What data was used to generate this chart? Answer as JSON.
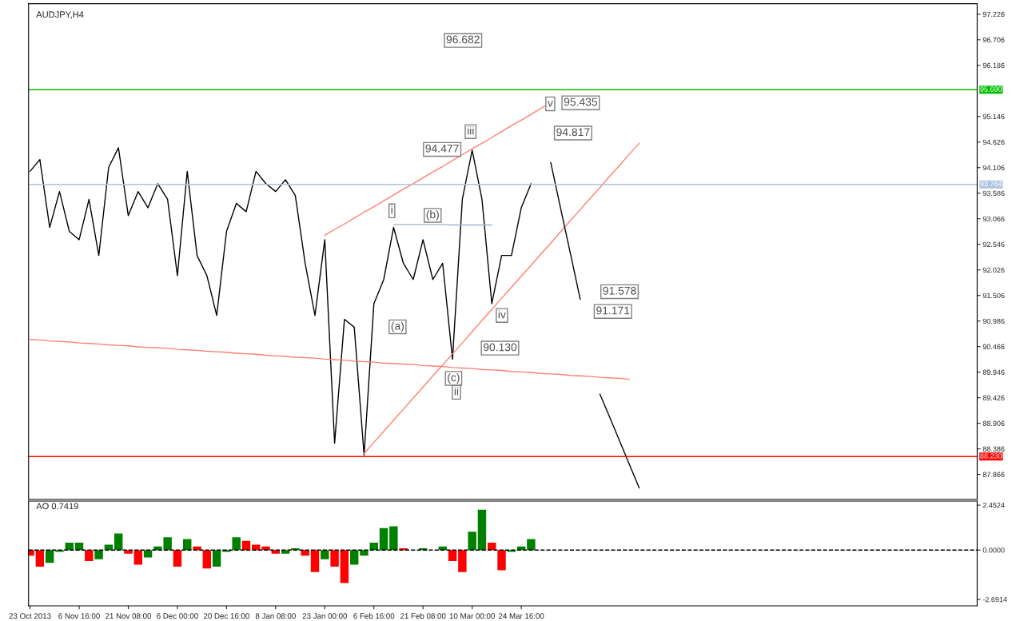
{
  "chart_data": [
    {
      "type": "line",
      "title": "AUDJPY,H4",
      "categories": [
        null,
        null,
        null,
        null,
        null,
        null,
        null,
        null,
        null,
        null,
        null,
        null,
        null,
        null,
        null,
        null,
        null,
        null,
        null,
        null,
        null,
        null,
        null,
        null,
        null,
        null,
        null,
        null,
        null,
        null,
        null,
        null,
        null,
        null,
        null,
        null,
        null,
        null,
        null,
        null,
        null,
        null,
        null,
        null,
        null,
        null,
        null,
        null,
        null,
        null,
        null,
        null,
        null,
        null,
        null,
        null,
        null,
        null,
        null,
        null,
        null,
        null,
        null,
        null,
        null,
        null,
        null,
        null,
        null,
        null,
        null,
        null,
        null,
        null,
        null,
        null,
        null,
        null,
        null,
        null,
        null,
        null,
        null,
        null,
        null,
        null,
        null,
        null,
        null,
        null,
        null,
        null,
        null,
        null,
        null,
        null,
        null
      ],
      "ylim": [
        87.36,
        97.44
      ],
      "tick_labels": "y",
      "yticks": [
        87.866,
        88.386,
        88.906,
        89.426,
        89.946,
        90.466,
        90.986,
        91.506,
        92.026,
        92.546,
        93.066,
        93.586,
        94.106,
        94.626,
        95.146,
        96.186,
        96.706,
        97.226
      ],
      "series": [
        {
          "color": "#000000",
          "values": [
            94.03,
            94.27,
            92.89,
            93.62,
            92.81,
            92.64,
            93.46,
            92.32,
            94.11,
            94.51,
            93.13,
            93.62,
            93.29,
            93.78,
            93.46,
            91.91,
            94.03,
            92.32,
            91.91,
            91.1,
            92.81,
            93.38,
            93.21,
            94.03,
            93.78,
            93.62,
            93.86,
            93.54,
            92.16,
            91.1,
            92.64,
            88.5,
            91.02,
            90.86,
            88.26,
            91.34,
            91.83,
            92.89,
            92.16,
            91.83,
            92.64,
            91.83,
            92.16,
            90.21,
            93.46,
            94.46,
            93.46,
            91.34,
            92.32,
            92.32,
            93.29,
            93.78,
            null,
            null,
            null,
            null,
            null,
            null,
            null,
            null,
            null,
            null,
            null,
            null,
            null,
            null,
            null,
            null,
            null,
            null,
            null,
            null,
            null,
            null,
            null,
            null,
            null,
            null,
            null,
            null,
            null,
            null,
            null,
            null,
            null,
            null,
            null,
            null,
            null,
            null,
            null,
            null,
            null,
            null,
            null,
            null,
            null
          ]
        },
        {
          "color": "#ff8070",
          "values": [
            null,
            null,
            null,
            null,
            null,
            null,
            null,
            null,
            null,
            null,
            null,
            null,
            null,
            null,
            null,
            null,
            null,
            null,
            null,
            null,
            null,
            null,
            null,
            null,
            null,
            null,
            null,
            null,
            null,
            null,
            92.73,
            92.85,
            92.96,
            93.08,
            93.2,
            93.31,
            93.43,
            93.55,
            93.67,
            93.78,
            93.9,
            94.02,
            94.13,
            94.25,
            94.37,
            94.49,
            94.6,
            94.72,
            94.84,
            94.96,
            95.07,
            95.19,
            95.31,
            95.43,
            null,
            null,
            null,
            null,
            null,
            null,
            null,
            null,
            null,
            null,
            null,
            null,
            null,
            null,
            null,
            null,
            null,
            null,
            null,
            null,
            null,
            null,
            null,
            null,
            null,
            null,
            null,
            null,
            null,
            null,
            null,
            null,
            null,
            null,
            null,
            null,
            null,
            null,
            null,
            null,
            null,
            null,
            null
          ]
        },
        {
          "color": "#ff8070",
          "values": [
            null,
            null,
            null,
            null,
            null,
            null,
            null,
            null,
            null,
            null,
            null,
            null,
            null,
            null,
            null,
            null,
            null,
            null,
            null,
            null,
            null,
            null,
            null,
            null,
            null,
            null,
            null,
            null,
            null,
            null,
            null,
            null,
            null,
            null,
            88.29,
            88.52,
            88.74,
            88.97,
            89.19,
            89.42,
            89.64,
            89.87,
            90.09,
            90.32,
            90.54,
            90.77,
            91.0,
            91.22,
            91.45,
            91.67,
            91.9,
            92.12,
            92.35,
            92.57,
            92.8,
            93.03,
            93.25,
            93.48,
            93.7,
            93.93,
            94.15,
            94.38,
            94.6,
            null,
            null,
            null,
            null,
            null,
            null,
            null,
            null,
            null,
            null,
            null,
            null,
            null,
            null,
            null,
            null,
            null,
            null,
            null,
            null,
            null,
            null,
            null,
            null,
            null,
            null,
            null,
            null,
            null,
            null,
            null,
            null,
            null,
            null
          ]
        },
        {
          "color": "#ff8070",
          "values": [
            90.61,
            90.6,
            90.58,
            90.57,
            90.56,
            90.54,
            90.53,
            90.52,
            90.5,
            90.49,
            90.48,
            90.46,
            90.45,
            90.44,
            90.43,
            90.41,
            90.4,
            90.39,
            90.37,
            90.36,
            90.35,
            90.33,
            90.32,
            90.31,
            90.29,
            90.28,
            90.27,
            90.25,
            90.24,
            90.23,
            90.21,
            90.2,
            90.19,
            90.17,
            90.16,
            90.15,
            90.13,
            90.12,
            90.11,
            90.1,
            90.08,
            90.07,
            90.06,
            90.04,
            90.03,
            90.02,
            90.0,
            89.99,
            89.98,
            89.96,
            89.95,
            89.94,
            89.92,
            89.91,
            89.9,
            89.88,
            89.87,
            89.86,
            89.84,
            89.83,
            89.82,
            89.8,
            null,
            null,
            null,
            null,
            null,
            null,
            null,
            null,
            null,
            null,
            null,
            null,
            null,
            null,
            null,
            null,
            null,
            null,
            null,
            null,
            null,
            null,
            null,
            null,
            null,
            null,
            null,
            null,
            null,
            null,
            null,
            null,
            null,
            null,
            null
          ]
        },
        {
          "color": "#a0b4d0",
          "values": [
            null,
            null,
            null,
            null,
            null,
            null,
            null,
            null,
            null,
            null,
            null,
            null,
            null,
            null,
            null,
            null,
            null,
            null,
            null,
            null,
            null,
            null,
            null,
            null,
            null,
            null,
            null,
            null,
            null,
            null,
            null,
            null,
            null,
            null,
            null,
            null,
            null,
            92.95,
            92.95,
            92.95,
            92.95,
            92.95,
            92.95,
            92.94,
            92.94,
            92.94,
            92.94,
            92.94,
            null,
            null,
            null,
            null,
            null,
            null,
            null,
            null,
            null,
            null,
            null,
            null,
            null,
            null,
            null,
            null,
            null,
            null,
            null,
            null,
            null,
            null,
            null,
            null,
            null,
            null,
            null,
            null,
            null,
            null,
            null,
            null,
            null,
            null,
            null,
            null,
            null,
            null,
            null,
            null,
            null,
            null,
            null,
            null,
            null,
            null,
            null,
            null,
            null
          ]
        },
        {
          "color": "#000000",
          "values": [
            null,
            null,
            null,
            null,
            null,
            null,
            null,
            null,
            null,
            null,
            null,
            null,
            null,
            null,
            null,
            null,
            null,
            null,
            null,
            null,
            null,
            null,
            null,
            null,
            null,
            null,
            null,
            null,
            null,
            null,
            null,
            null,
            null,
            null,
            null,
            null,
            null,
            null,
            null,
            null,
            null,
            null,
            null,
            null,
            null,
            null,
            null,
            null,
            null,
            null,
            null,
            null,
            null,
            94.21,
            93.28,
            92.36,
            91.43,
            null,
            null,
            null,
            null,
            null,
            null,
            null,
            null,
            null,
            null,
            null,
            null,
            null,
            null,
            null,
            null,
            null,
            null,
            null,
            null,
            null,
            null,
            null,
            null,
            null,
            null,
            null,
            null,
            null,
            null,
            null,
            null,
            null,
            null,
            null,
            null,
            null,
            null,
            null,
            null
          ]
        },
        {
          "color": "#000000",
          "values": [
            null,
            null,
            null,
            null,
            null,
            null,
            null,
            null,
            null,
            null,
            null,
            null,
            null,
            null,
            null,
            null,
            null,
            null,
            null,
            null,
            null,
            null,
            null,
            null,
            null,
            null,
            null,
            null,
            null,
            null,
            null,
            null,
            null,
            null,
            null,
            null,
            null,
            null,
            null,
            null,
            null,
            null,
            null,
            null,
            null,
            null,
            null,
            null,
            null,
            null,
            null,
            null,
            null,
            null,
            null,
            null,
            null,
            null,
            89.5,
            89.03,
            88.55,
            88.07,
            87.59,
            null,
            null,
            null,
            null,
            null,
            null,
            null,
            null,
            null,
            null,
            null,
            null,
            null,
            null,
            null,
            null,
            null,
            null,
            null,
            null,
            null,
            null,
            null,
            null,
            null,
            null,
            null,
            null,
            null,
            null,
            null,
            null,
            null,
            null
          ]
        }
      ],
      "ref_lines": [
        {
          "axis": "y",
          "value": 95.69,
          "label": "95.690",
          "color": "#00c000"
        },
        {
          "axis": "y",
          "value": 93.764,
          "label": "93.764",
          "color": "#b0c4de"
        },
        {
          "axis": "y",
          "value": 88.23,
          "label": "88.230",
          "color": "#ff0000"
        }
      ],
      "annotations": [
        "96.682",
        "94.477",
        "90.130",
        "95.435",
        "94.817",
        "91.578",
        "91.171",
        "i",
        "(b)",
        "(a)",
        "iii",
        "v",
        "iv",
        "(c)",
        "ii"
      ]
    },
    {
      "type": "bar",
      "title": "AO 0.7419",
      "categories": [
        "23 Oct 2013",
        null,
        null,
        null,
        null,
        "6 Nov 16:00",
        null,
        null,
        null,
        null,
        "21 Nov 08:00",
        null,
        null,
        null,
        null,
        "6 Dec 00:00",
        null,
        null,
        null,
        null,
        "20 Dec 16:00",
        null,
        null,
        null,
        null,
        "8 Jan 08:00",
        null,
        null,
        null,
        null,
        "23 Jan 00:00",
        null,
        null,
        null,
        null,
        "6 Feb 16:00",
        null,
        null,
        null,
        null,
        "21 Feb 08:00",
        null,
        null,
        null,
        null,
        "10 Mar 00:00",
        null,
        null,
        null,
        null,
        "24 Mar 16:00",
        null,
        null,
        null,
        null,
        null,
        null,
        null,
        null,
        null,
        null,
        null,
        null,
        null,
        null,
        null,
        null,
        null,
        null,
        null,
        null,
        null,
        null,
        null,
        null,
        null,
        null,
        null,
        null,
        null,
        null,
        null,
        null,
        null,
        null,
        null,
        null,
        null,
        null,
        null,
        null,
        null,
        null,
        null,
        null,
        null,
        null
      ],
      "ylim": [
        -3.04,
        2.67
      ],
      "yticks": [
        {
          "value": -2.6914,
          "label": "-2.6914"
        },
        {
          "value": 0,
          "label": "0.0000"
        },
        2.4524
      ],
      "ref_lines": [
        {
          "axis": "y",
          "value": 0,
          "color": "#000000",
          "line_style": "dashed"
        }
      ],
      "series": [
        {
          "values": [
            -0.3,
            -0.9,
            -0.7,
            -0.1,
            0.4,
            0.4,
            -0.6,
            -0.5,
            0.3,
            0.9,
            -0.2,
            -0.8,
            -0.4,
            0.2,
            0.7,
            -0.9,
            0.6,
            0.2,
            -1.0,
            -0.9,
            -0.1,
            0.7,
            0.5,
            0.3,
            0.2,
            -0.2,
            -0.2,
            0.1,
            -0.3,
            -1.2,
            -0.5,
            -0.9,
            -1.8,
            -0.8,
            -0.3,
            0.4,
            1.2,
            1.3,
            0.1,
            0.0,
            0.1,
            0.0,
            0.2,
            -0.6,
            -1.2,
            1.0,
            2.2,
            0.4,
            -1.1,
            -0.1,
            0.2,
            0.6,
            null,
            null,
            null,
            null,
            null,
            null,
            null,
            null,
            null,
            null,
            null,
            null,
            null,
            null,
            null,
            null,
            null,
            null,
            null,
            null,
            null,
            null,
            null,
            null,
            null,
            null,
            null,
            null,
            null,
            null,
            null,
            null,
            null,
            null,
            null,
            null,
            null,
            null,
            null,
            null,
            null,
            null,
            null,
            null,
            null
          ],
          "colors": [
            "#ff0000",
            "#ff0000",
            "#008000",
            "#008000",
            "#008000",
            "#008000",
            "#ff0000",
            "#008000",
            "#008000",
            "#008000",
            "#ff0000",
            "#ff0000",
            "#008000",
            "#008000",
            "#008000",
            "#ff0000",
            "#008000",
            "#ff0000",
            "#ff0000",
            "#008000",
            "#008000",
            "#008000",
            "#ff0000",
            "#ff0000",
            "#ff0000",
            "#ff0000",
            "#008000",
            "#008000",
            "#ff0000",
            "#ff0000",
            "#008000",
            "#ff0000",
            "#ff0000",
            "#008000",
            "#008000",
            "#008000",
            "#008000",
            "#008000",
            "#ff0000",
            "#ff0000",
            "#008000",
            "#ff0000",
            "#008000",
            "#ff0000",
            "#ff0000",
            "#008000",
            "#008000",
            "#ff0000",
            "#ff0000",
            "#008000",
            "#008000",
            "#008000",
            null,
            null,
            null,
            null,
            null,
            null,
            null,
            null,
            null,
            null,
            null,
            null,
            null,
            null,
            null,
            null,
            null,
            null,
            null,
            null,
            null,
            null,
            null,
            null,
            null,
            null,
            null,
            null,
            null,
            null,
            null,
            null,
            null,
            null,
            null,
            null,
            null,
            null,
            null,
            null,
            null,
            null,
            null,
            null,
            null
          ]
        }
      ]
    }
  ]
}
